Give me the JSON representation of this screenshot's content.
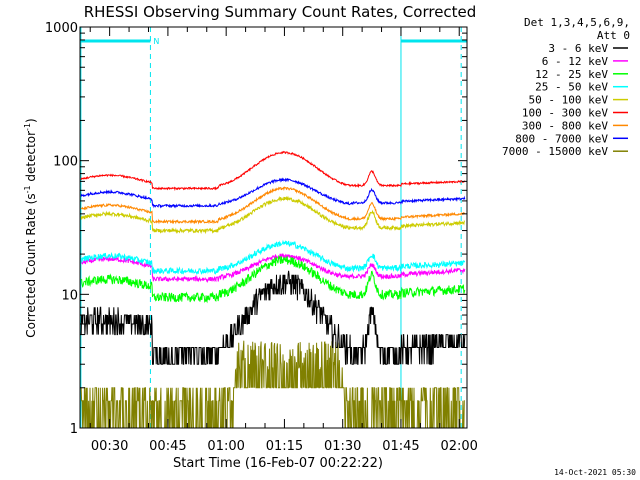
{
  "chart_data": {
    "type": "line",
    "title": "RHESSI Observing Summary Count Rates, Corrected",
    "xlabel": "Start Time (16-Feb-07 00:22:22)",
    "ylabel_main": "Corrected Count Rate (s",
    "ylabel_sup1": "-1",
    "ylabel_mid": " detector",
    "ylabel_sup2": "-1",
    "ylabel_end": ")",
    "x_range_minutes": [
      22.37,
      122.0
    ],
    "x_ticks": [
      {
        "m": 30,
        "label": "00:30"
      },
      {
        "m": 45,
        "label": "00:45"
      },
      {
        "m": 60,
        "label": "01:00"
      },
      {
        "m": 75,
        "label": "01:15"
      },
      {
        "m": 90,
        "label": "01:30"
      },
      {
        "m": 105,
        "label": "01:45"
      },
      {
        "m": 120,
        "label": "02:00"
      }
    ],
    "y_scale": "log",
    "y_range": [
      1,
      1000
    ],
    "y_tick_labels": [
      "1",
      "10",
      "100",
      "1000"
    ],
    "legend_header_1": "Det 1,3,4,5,6,9,",
    "legend_header_2": "Att 0",
    "legend_placement": "right",
    "night_intervals_minutes": [
      [
        22.37,
        40.5
      ],
      [
        105.0,
        122.0
      ]
    ],
    "vertical_dashed_lines_minutes": [
      40.5,
      120.5
    ],
    "vertical_solid_lines_minutes": [
      22.6,
      105.0
    ],
    "saa_marker_label": "N",
    "series": [
      {
        "name": "3 - 6 keV",
        "color": "#000000",
        "baseline": 6.0,
        "dip": 3.5,
        "peak": 12.5,
        "bump": 7.0,
        "noise": 0.14
      },
      {
        "name": "6 - 12 keV",
        "color": "#ff00ff",
        "baseline": 17.0,
        "dip": 13.0,
        "peak": 19.5,
        "bump": 16.0,
        "noise": 0.04
      },
      {
        "name": "12 - 25 keV",
        "color": "#00ff00",
        "baseline": 12.0,
        "dip": 9.5,
        "peak": 18.0,
        "bump": 13.5,
        "noise": 0.08
      },
      {
        "name": "25 - 50 keV",
        "color": "#00ffff",
        "baseline": 18.0,
        "dip": 15.0,
        "peak": 24.0,
        "bump": 19.0,
        "noise": 0.05
      },
      {
        "name": "50 - 100 keV",
        "color": "#cccc00",
        "baseline": 37.0,
        "dip": 30.0,
        "peak": 52.0,
        "bump": 40.0,
        "noise": 0.03
      },
      {
        "name": "100 - 300 keV",
        "color": "#ff0000",
        "baseline": 72.0,
        "dip": 62.0,
        "peak": 115.0,
        "bump": 80.0,
        "noise": 0.015
      },
      {
        "name": "300 - 800 keV",
        "color": "#ff8800",
        "baseline": 43.0,
        "dip": 35.0,
        "peak": 62.0,
        "bump": 46.0,
        "noise": 0.02
      },
      {
        "name": "800 - 7000 keV",
        "color": "#0000ff",
        "baseline": 54.0,
        "dip": 46.0,
        "peak": 72.0,
        "bump": 58.0,
        "noise": 0.02
      },
      {
        "name": "7000 - 15000 keV",
        "color": "#808000",
        "baseline": 1.6,
        "dip": 1.3,
        "peak": 4.5,
        "bump": 1.8,
        "noise": 0.3
      }
    ]
  },
  "footer_timestamp": "14-Oct-2021 05:30"
}
